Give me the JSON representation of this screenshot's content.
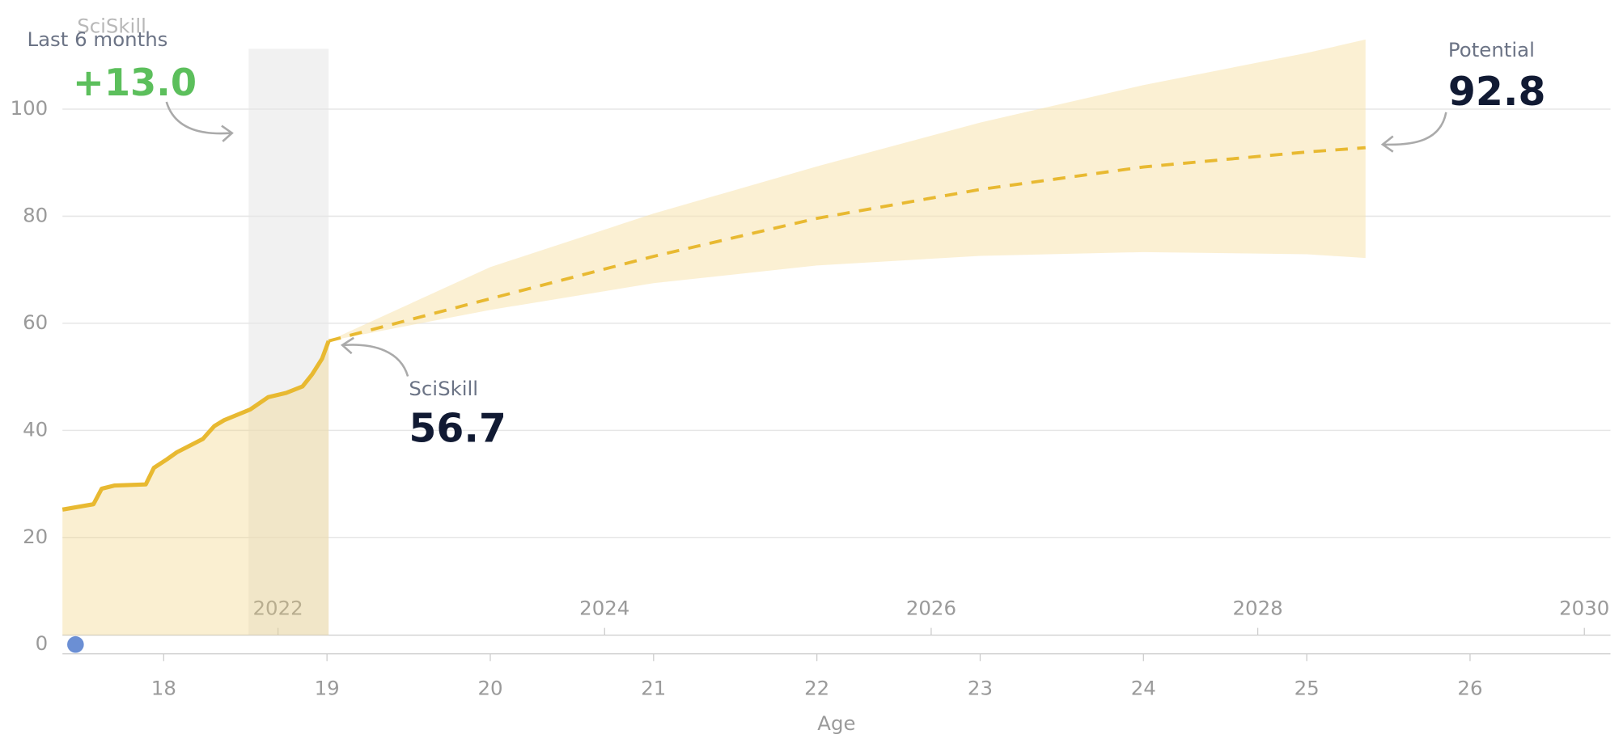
{
  "chart_data": {
    "type": "line",
    "x_label": "Age",
    "xlim": [
      17.38,
      26.86
    ],
    "xticks": [
      18,
      19,
      20,
      21,
      22,
      23,
      24,
      25,
      26
    ],
    "ylim": [
      0,
      115
    ],
    "yticks": [
      0,
      20,
      40,
      60,
      80,
      100
    ],
    "x2lim": [
      2020.68,
      2030.16
    ],
    "x2ticks": [
      2022,
      2024,
      2026,
      2028,
      2030
    ],
    "grid": true,
    "highlight": {
      "label": "Last 6 months",
      "x": [
        18.52,
        19.01
      ]
    },
    "series": [
      {
        "name": "SciSkill",
        "color": "#e8b931",
        "x": [
          17.38,
          17.57,
          17.62,
          17.7,
          17.89,
          17.94,
          18.02,
          18.08,
          18.24,
          18.31,
          18.37,
          18.53,
          18.64,
          18.75,
          18.85,
          18.91,
          18.97,
          19.01
        ],
        "values": [
          25.2,
          26.2,
          29.1,
          29.7,
          29.9,
          33,
          34.6,
          35.9,
          38.4,
          40.8,
          41.9,
          43.9,
          46.2,
          47,
          48.2,
          50.5,
          53.4,
          56.7
        ]
      },
      {
        "name": "Potential",
        "color": "#e8b931",
        "x": [
          19.01,
          20,
          21,
          22,
          23,
          24,
          25,
          25.36
        ],
        "values": [
          56.7,
          64.6,
          72.5,
          79.6,
          85,
          89.2,
          92,
          92.8
        ],
        "upper": [
          56.7,
          70.5,
          80.5,
          89.3,
          97.5,
          104.5,
          110.5,
          113
        ],
        "lower": [
          56.7,
          62.5,
          67.5,
          70.8,
          72.6,
          73.3,
          72.9,
          72.2
        ]
      }
    ],
    "marker": {
      "x": 17.46,
      "y": 0,
      "color": "#6b8fd4"
    },
    "annotations": {
      "change_title": "SciSkill",
      "change_value": "+13.0",
      "current_title": "SciSkill",
      "current_value": "56.7",
      "potential_title": "Potential",
      "potential_value": "92.8"
    }
  }
}
